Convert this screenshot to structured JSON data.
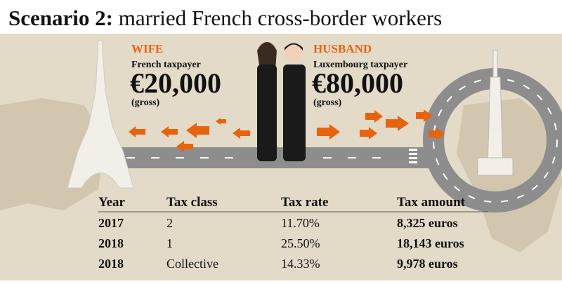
{
  "header": {
    "title_lead": "Scenario 2:",
    "title_rest": "married French cross-border workers"
  },
  "wife": {
    "label": "WIFE",
    "role": "French taxpayer",
    "amount": "€20,000",
    "note": "(gross)"
  },
  "husband": {
    "label": "HUSBAND",
    "role": "Luxembourg taxpayer",
    "amount": "€80,000",
    "note": "(gross)"
  },
  "table": {
    "columns": [
      "Year",
      "Tax class",
      "Tax rate",
      "Tax amount"
    ],
    "rows": [
      [
        "2017",
        "2",
        "11.70%",
        "8,325 euros"
      ],
      [
        "2018",
        "1",
        "25.50%",
        "18,143 euros"
      ],
      [
        "2018",
        "Collective",
        "14.33%",
        "9,978 euros"
      ]
    ]
  }
}
